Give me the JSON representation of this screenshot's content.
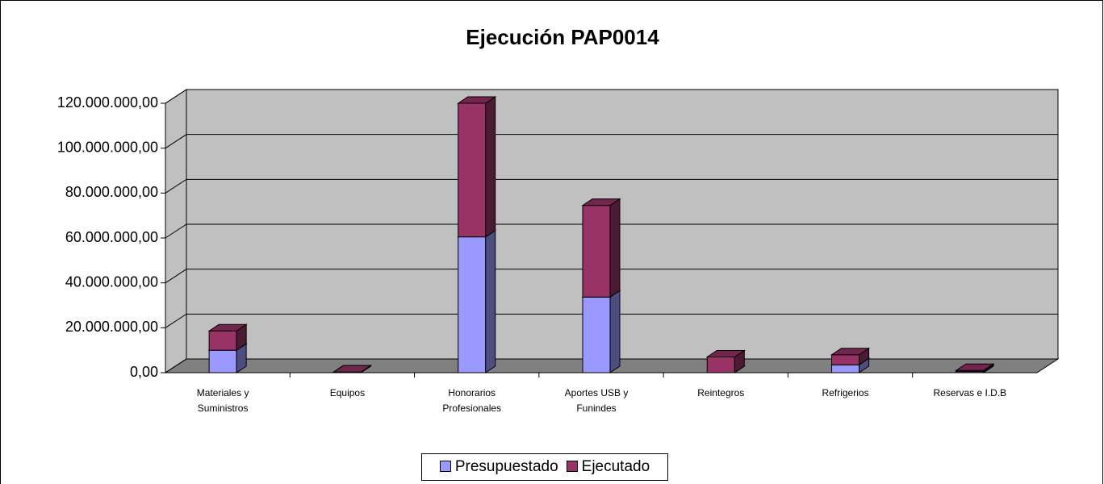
{
  "chart_data": {
    "type": "bar3d_stacked",
    "title": "Ejecución PAP0014",
    "categories": [
      "Materiales y Suministros",
      "Equipos",
      "Honorarios Profesionales",
      "Aportes USB y Funindes",
      "Reintegros",
      "Refrigerios",
      "Reservas e I.D.B"
    ],
    "series": [
      {
        "name": "Presupuestado",
        "color": "#9999ff",
        "values": [
          10000000,
          300000,
          60500000,
          33700000,
          0,
          3500000,
          500000
        ]
      },
      {
        "name": "Ejecutado",
        "color": "#993366",
        "values": [
          8600000,
          0,
          59500000,
          40800000,
          7000000,
          4500000,
          500000
        ]
      }
    ],
    "ylim": [
      0,
      120000000
    ],
    "yticks": [
      {
        "value": 0,
        "label": "0,00"
      },
      {
        "value": 20000000,
        "label": "20.000.000,00"
      },
      {
        "value": 40000000,
        "label": "40.000.000,00"
      },
      {
        "value": 60000000,
        "label": "60.000.000,00"
      },
      {
        "value": 80000000,
        "label": "80.000.000,00"
      },
      {
        "value": 100000000,
        "label": "100.000.000,00"
      },
      {
        "value": 120000000,
        "label": "120.000.000,00"
      }
    ],
    "grid": true,
    "legend": "bottom"
  }
}
